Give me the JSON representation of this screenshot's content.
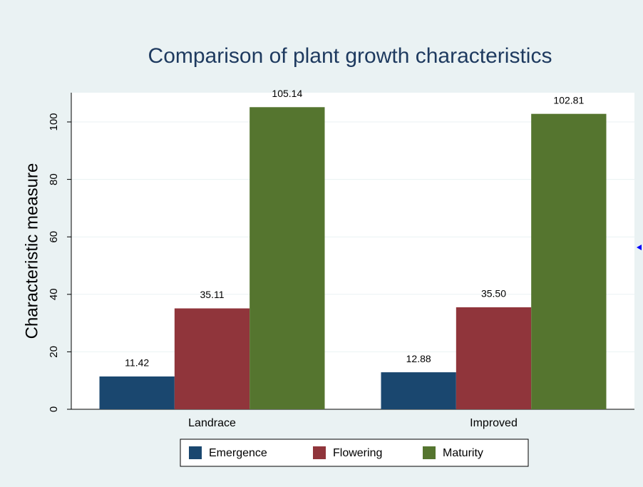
{
  "chart_data": {
    "type": "bar",
    "title": "Comparison of plant growth characteristics",
    "y_label": "Characteristic measure",
    "categories": [
      "Landrace",
      "Improved"
    ],
    "series": [
      {
        "name": "Emergence",
        "color": "#1a476f",
        "values": [
          11.42,
          12.88
        ],
        "value_labels": [
          "11.42",
          "12.88"
        ]
      },
      {
        "name": "Flowering",
        "color": "#90353b",
        "values": [
          35.11,
          35.5
        ],
        "value_labels": [
          "35.11",
          "35.50"
        ]
      },
      {
        "name": "Maturity",
        "color": "#55752f",
        "values": [
          105.14,
          102.81
        ],
        "value_labels": [
          "105.14",
          "102.81"
        ]
      }
    ],
    "ylim": [
      0,
      110
    ],
    "yticks": [
      0,
      20,
      40,
      60,
      80,
      100
    ],
    "grid": true,
    "legend": "bottom"
  }
}
